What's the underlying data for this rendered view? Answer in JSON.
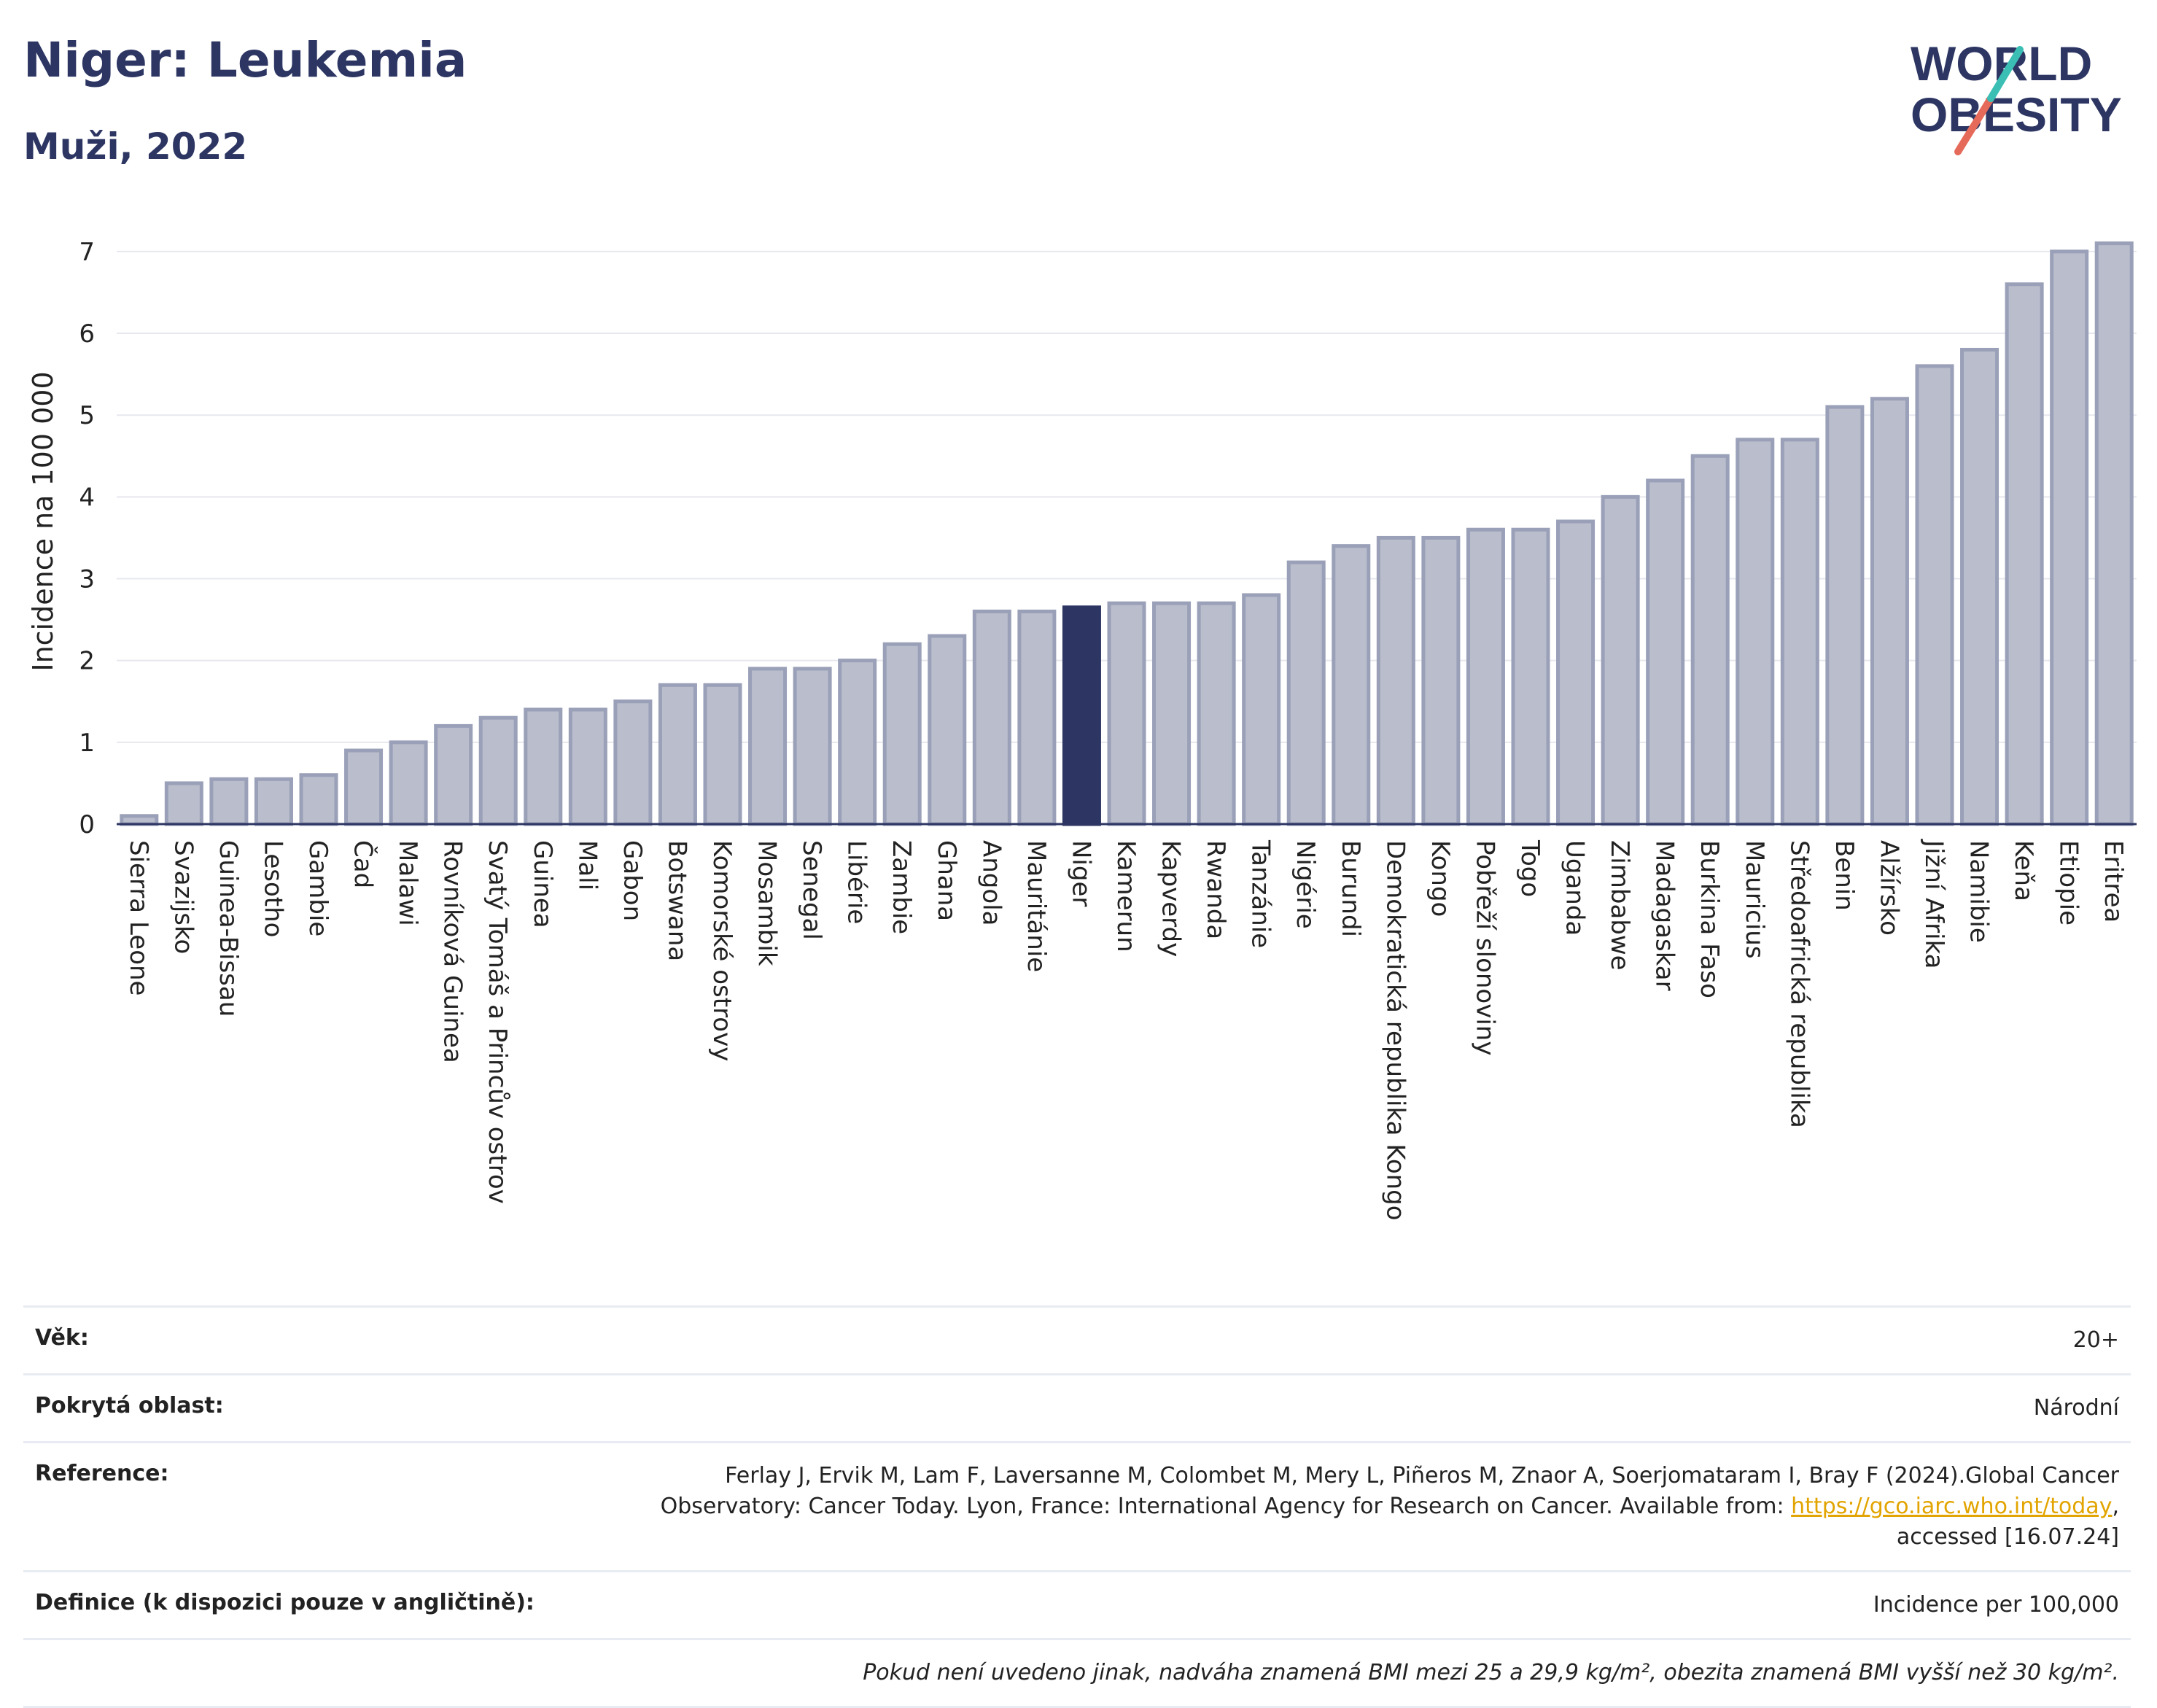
{
  "header": {
    "title": "Niger: Leukemia",
    "subtitle": "Muži, 2022",
    "logo_line1": "WORLD",
    "logo_line2": "OBESITY"
  },
  "colors": {
    "bar": "#b9bdcc",
    "bar_stroke": "#9aa0b8",
    "highlight": "#2d3663",
    "grid": "#e6e8ee",
    "title": "#2d3663",
    "logo_teal": "#3bbfb5",
    "logo_red": "#e56a5a"
  },
  "chart_data": {
    "type": "bar",
    "title": "Niger: Leukemia",
    "subtitle": "Muži, 2022",
    "xlabel": "",
    "ylabel": "Incidence na 100 000",
    "ylim": [
      0,
      7.4
    ],
    "yticks": [
      0,
      1,
      2,
      3,
      4,
      5,
      6,
      7
    ],
    "grid": true,
    "highlight": "Niger",
    "categories": [
      "Sierra Leone",
      "Svazijsko",
      "Guinea-Bissau",
      "Lesotho",
      "Gambie",
      "Čad",
      "Malawi",
      "Rovníková Guinea",
      "Svatý Tomáš a Princův ostrov",
      "Guinea",
      "Mali",
      "Gabon",
      "Botswana",
      "Komorské ostrovy",
      "Mosambik",
      "Senegal",
      "Libérie",
      "Zambie",
      "Ghana",
      "Angola",
      "Mauritánie",
      "Niger",
      "Kamerun",
      "Kapverdy",
      "Rwanda",
      "Tanzánie",
      "Nigérie",
      "Burundi",
      "Demokratická republika Kongo",
      "Kongo",
      "Pobřeží slonoviny",
      "Togo",
      "Uganda",
      "Zimbabwe",
      "Madagaskar",
      "Burkina Faso",
      "Mauricius",
      "Středoafrická republika",
      "Benin",
      "Alžírsko",
      "Jižní Afrika",
      "Namibie",
      "Keňa",
      "Etiopie",
      "Eritrea"
    ],
    "values": [
      0.1,
      0.5,
      0.55,
      0.55,
      0.6,
      0.9,
      1.0,
      1.2,
      1.3,
      1.4,
      1.4,
      1.5,
      1.7,
      1.7,
      1.9,
      1.9,
      2.0,
      2.2,
      2.3,
      2.6,
      2.6,
      2.65,
      2.7,
      2.7,
      2.7,
      2.8,
      3.2,
      3.4,
      3.5,
      3.5,
      3.6,
      3.6,
      3.7,
      4.0,
      4.2,
      4.5,
      4.7,
      4.7,
      5.1,
      5.2,
      5.6,
      5.8,
      6.6,
      7.0,
      7.1
    ]
  },
  "info": {
    "age_label": "Věk:",
    "age_value": "20+",
    "area_label": "Pokrytá oblast:",
    "area_value": "Národní",
    "ref_label": "Reference:",
    "ref_text_1": "Ferlay J, Ervik M, Lam F, Laversanne M, Colombet M, Mery L, Piñeros M, Znaor A, Soerjomataram I, Bray F (2024).Global Cancer",
    "ref_text_2": "Observatory: Cancer Today. Lyon, France: International Agency for Research on Cancer. Available from: ",
    "ref_link": "https://gco.iarc.who.int/today",
    "ref_text_3": ",",
    "ref_text_4": "accessed [16.07.24]",
    "def_label": "Definice (k dispozici pouze v angličtině):",
    "def_value": "Incidence per 100,000",
    "note": "Pokud není uvedeno jinak, nadváha znamená BMI mezi 25 a 29,9 kg/m², obezita znamená BMI vyšší než 30 kg/m²."
  }
}
